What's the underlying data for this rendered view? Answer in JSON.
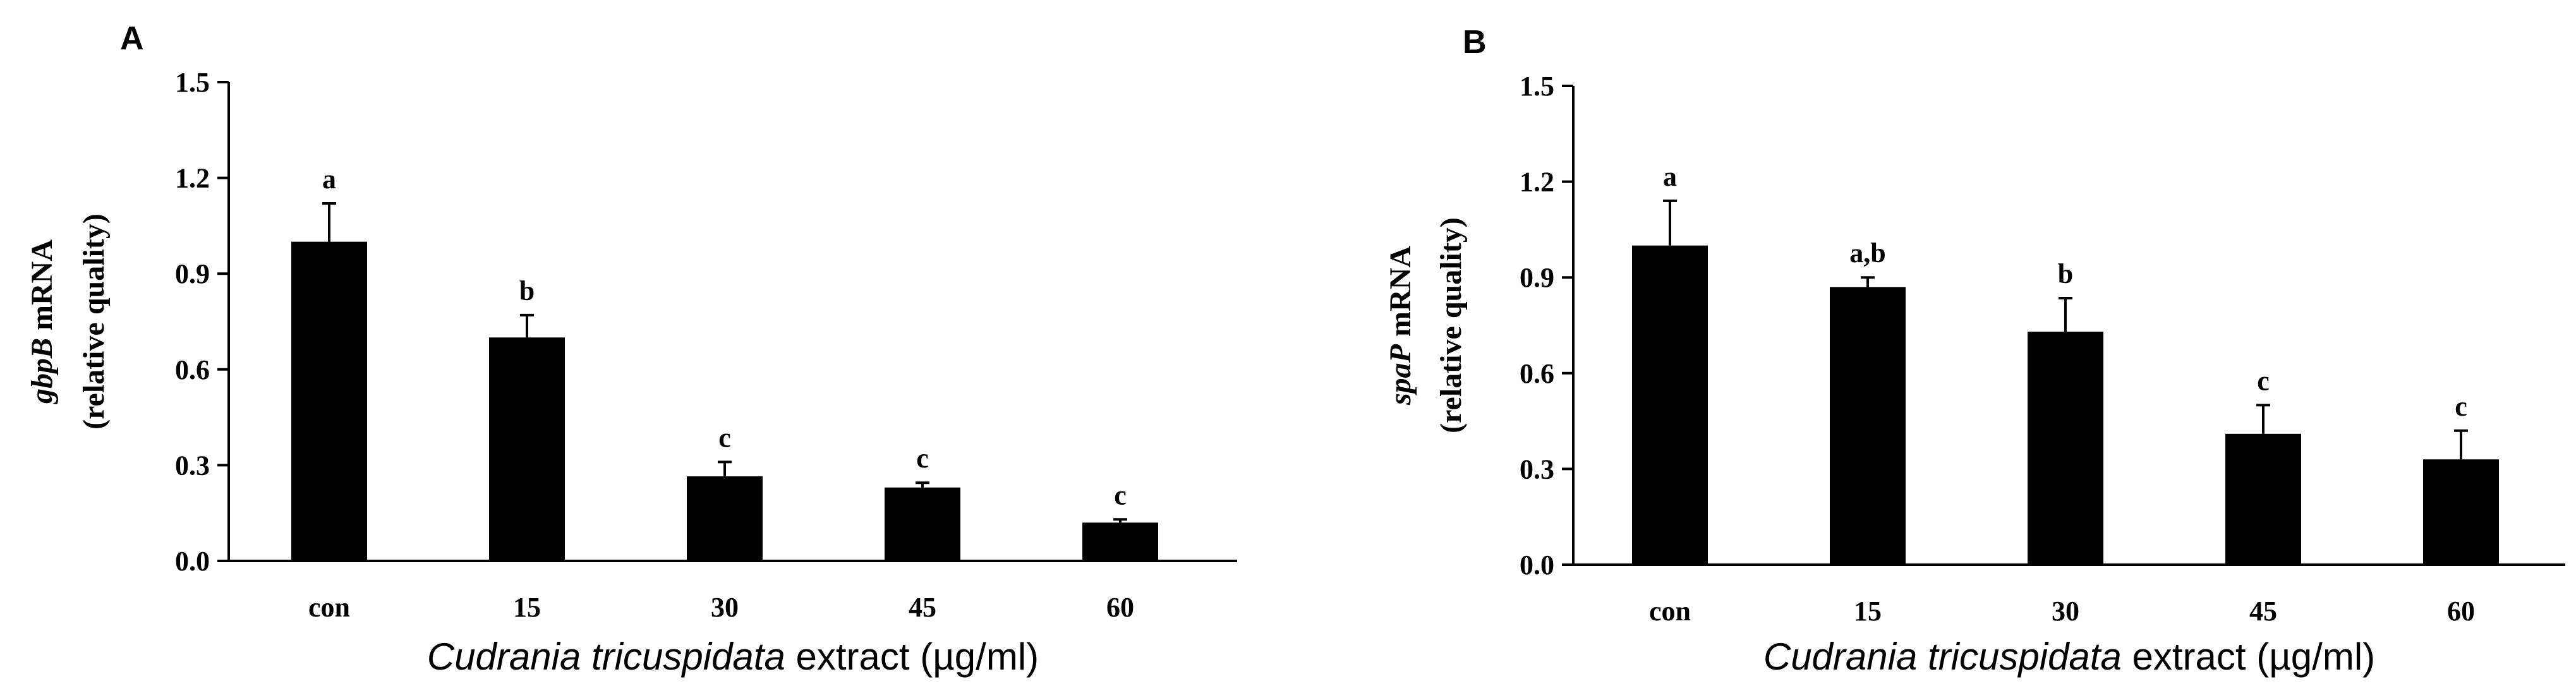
{
  "chart_data": [
    {
      "type": "bar",
      "panel_label": "A",
      "categories": [
        "con",
        "15",
        "30",
        "45",
        "60"
      ],
      "values": [
        1.0,
        0.7,
        0.265,
        0.23,
        0.12
      ],
      "errors": [
        0.12,
        0.07,
        0.045,
        0.015,
        0.01
      ],
      "significance_letters": [
        "a",
        "b",
        "c",
        "c",
        "c"
      ],
      "ylabel_gene": "gbpB",
      "ylabel_suffix": " mRNA",
      "ylabel_line2": "(relative quality)",
      "xlabel_species": "Cudrania tricuspidata",
      "xlabel_suffix": " extract (µg/ml)",
      "ylim": [
        0,
        1.5
      ],
      "yticks": [
        "0.0",
        "0.3",
        "0.6",
        "0.9",
        "1.2",
        "1.5"
      ],
      "bar_color": "#000000",
      "grid": false
    },
    {
      "type": "bar",
      "panel_label": "B",
      "categories": [
        "con",
        "15",
        "30",
        "45",
        "60"
      ],
      "values": [
        1.0,
        0.87,
        0.73,
        0.41,
        0.33
      ],
      "errors": [
        0.14,
        0.03,
        0.105,
        0.09,
        0.09
      ],
      "significance_letters": [
        "a",
        "a,b",
        "b",
        "c",
        "c"
      ],
      "ylabel_gene": "spaP",
      "ylabel_suffix": " mRNA",
      "ylabel_line2": "(relative quality)",
      "xlabel_species": "Cudrania tricuspidata",
      "xlabel_suffix": " extract (µg/ml)",
      "ylim": [
        0,
        1.5
      ],
      "yticks": [
        "0.0",
        "0.3",
        "0.6",
        "0.9",
        "1.2",
        "1.5"
      ],
      "bar_color": "#000000",
      "grid": false
    }
  ]
}
